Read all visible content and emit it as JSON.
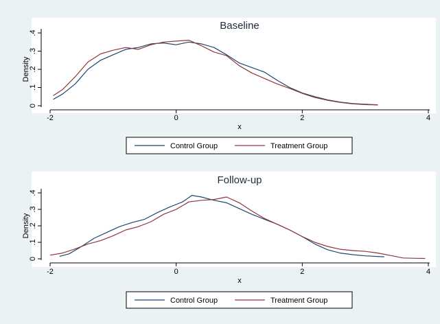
{
  "colors": {
    "background": "#eaf2f3",
    "plot_area": "#ffffff",
    "control": "#1a476f",
    "treatment": "#90353b"
  },
  "chart_data": [
    {
      "type": "line",
      "title": "Baseline",
      "xlabel": "x",
      "ylabel": "Density",
      "xlim": [
        -2,
        4
      ],
      "ylim": [
        0,
        0.4
      ],
      "xticks": [
        -2,
        0,
        2,
        4
      ],
      "yticks": [
        0,
        0.1,
        0.2,
        0.3,
        0.4
      ],
      "xtick_labels": [
        "-2",
        "0",
        "2",
        "4"
      ],
      "ytick_labels": [
        "0",
        ".1",
        ".2",
        ".3",
        ".4"
      ],
      "grid": false,
      "legend_position": "bottom",
      "series": [
        {
          "name": "Control Group",
          "color": "#1a476f",
          "x": [
            -1.95,
            -1.8,
            -1.6,
            -1.4,
            -1.2,
            -1.0,
            -0.8,
            -0.6,
            -0.4,
            -0.2,
            0.0,
            0.2,
            0.4,
            0.6,
            0.8,
            1.0,
            1.2,
            1.4,
            1.6,
            1.8,
            2.0,
            2.2,
            2.4,
            2.6,
            2.8,
            3.0,
            3.2
          ],
          "y": [
            0.035,
            0.065,
            0.12,
            0.2,
            0.25,
            0.28,
            0.31,
            0.32,
            0.34,
            0.345,
            0.335,
            0.35,
            0.34,
            0.32,
            0.28,
            0.235,
            0.21,
            0.185,
            0.14,
            0.1,
            0.07,
            0.05,
            0.032,
            0.02,
            0.012,
            0.008,
            0.005
          ]
        },
        {
          "name": "Treatment Group",
          "color": "#90353b",
          "x": [
            -1.95,
            -1.8,
            -1.6,
            -1.4,
            -1.2,
            -1.0,
            -0.8,
            -0.6,
            -0.4,
            -0.2,
            0.0,
            0.2,
            0.4,
            0.6,
            0.8,
            1.0,
            1.2,
            1.4,
            1.6,
            1.8,
            2.0,
            2.2,
            2.4,
            2.6,
            2.8,
            3.0,
            3.2
          ],
          "y": [
            0.055,
            0.09,
            0.16,
            0.24,
            0.285,
            0.305,
            0.32,
            0.31,
            0.335,
            0.35,
            0.355,
            0.36,
            0.33,
            0.295,
            0.275,
            0.22,
            0.18,
            0.15,
            0.12,
            0.095,
            0.068,
            0.045,
            0.03,
            0.018,
            0.01,
            0.006,
            0.004
          ]
        }
      ]
    },
    {
      "type": "line",
      "title": "Follow-up",
      "xlabel": "x",
      "ylabel": "Density",
      "xlim": [
        -2,
        4
      ],
      "ylim": [
        0,
        0.4
      ],
      "xticks": [
        -2,
        0,
        2,
        4
      ],
      "yticks": [
        0,
        0.1,
        0.2,
        0.3,
        0.4
      ],
      "xtick_labels": [
        "-2",
        "0",
        "2",
        "4"
      ],
      "ytick_labels": [
        "0",
        ".1",
        ".2",
        ".3",
        ".4"
      ],
      "grid": false,
      "legend_position": "bottom",
      "series": [
        {
          "name": "Control Group",
          "color": "#1a476f",
          "x": [
            -1.85,
            -1.7,
            -1.5,
            -1.3,
            -1.1,
            -0.9,
            -0.7,
            -0.5,
            -0.3,
            -0.1,
            0.1,
            0.25,
            0.4,
            0.6,
            0.8,
            1.0,
            1.2,
            1.4,
            1.6,
            1.8,
            2.0,
            2.2,
            2.4,
            2.6,
            2.8,
            3.0,
            3.3
          ],
          "y": [
            0.015,
            0.03,
            0.075,
            0.125,
            0.16,
            0.195,
            0.22,
            0.24,
            0.28,
            0.315,
            0.345,
            0.385,
            0.375,
            0.355,
            0.34,
            0.305,
            0.27,
            0.24,
            0.21,
            0.175,
            0.135,
            0.09,
            0.055,
            0.035,
            0.025,
            0.018,
            0.012
          ]
        },
        {
          "name": "Treatment Group",
          "color": "#90353b",
          "x": [
            -2.0,
            -1.8,
            -1.6,
            -1.4,
            -1.2,
            -1.0,
            -0.8,
            -0.6,
            -0.4,
            -0.2,
            0.0,
            0.2,
            0.4,
            0.6,
            0.8,
            1.0,
            1.2,
            1.4,
            1.6,
            1.8,
            2.0,
            2.2,
            2.4,
            2.6,
            2.8,
            3.0,
            3.2,
            3.4,
            3.6,
            3.8,
            3.95
          ],
          "y": [
            0.022,
            0.035,
            0.06,
            0.09,
            0.11,
            0.14,
            0.175,
            0.195,
            0.225,
            0.27,
            0.3,
            0.345,
            0.355,
            0.36,
            0.375,
            0.34,
            0.29,
            0.245,
            0.21,
            0.175,
            0.135,
            0.1,
            0.075,
            0.058,
            0.05,
            0.045,
            0.035,
            0.02,
            0.005,
            0.003,
            0.002
          ]
        }
      ]
    }
  ]
}
